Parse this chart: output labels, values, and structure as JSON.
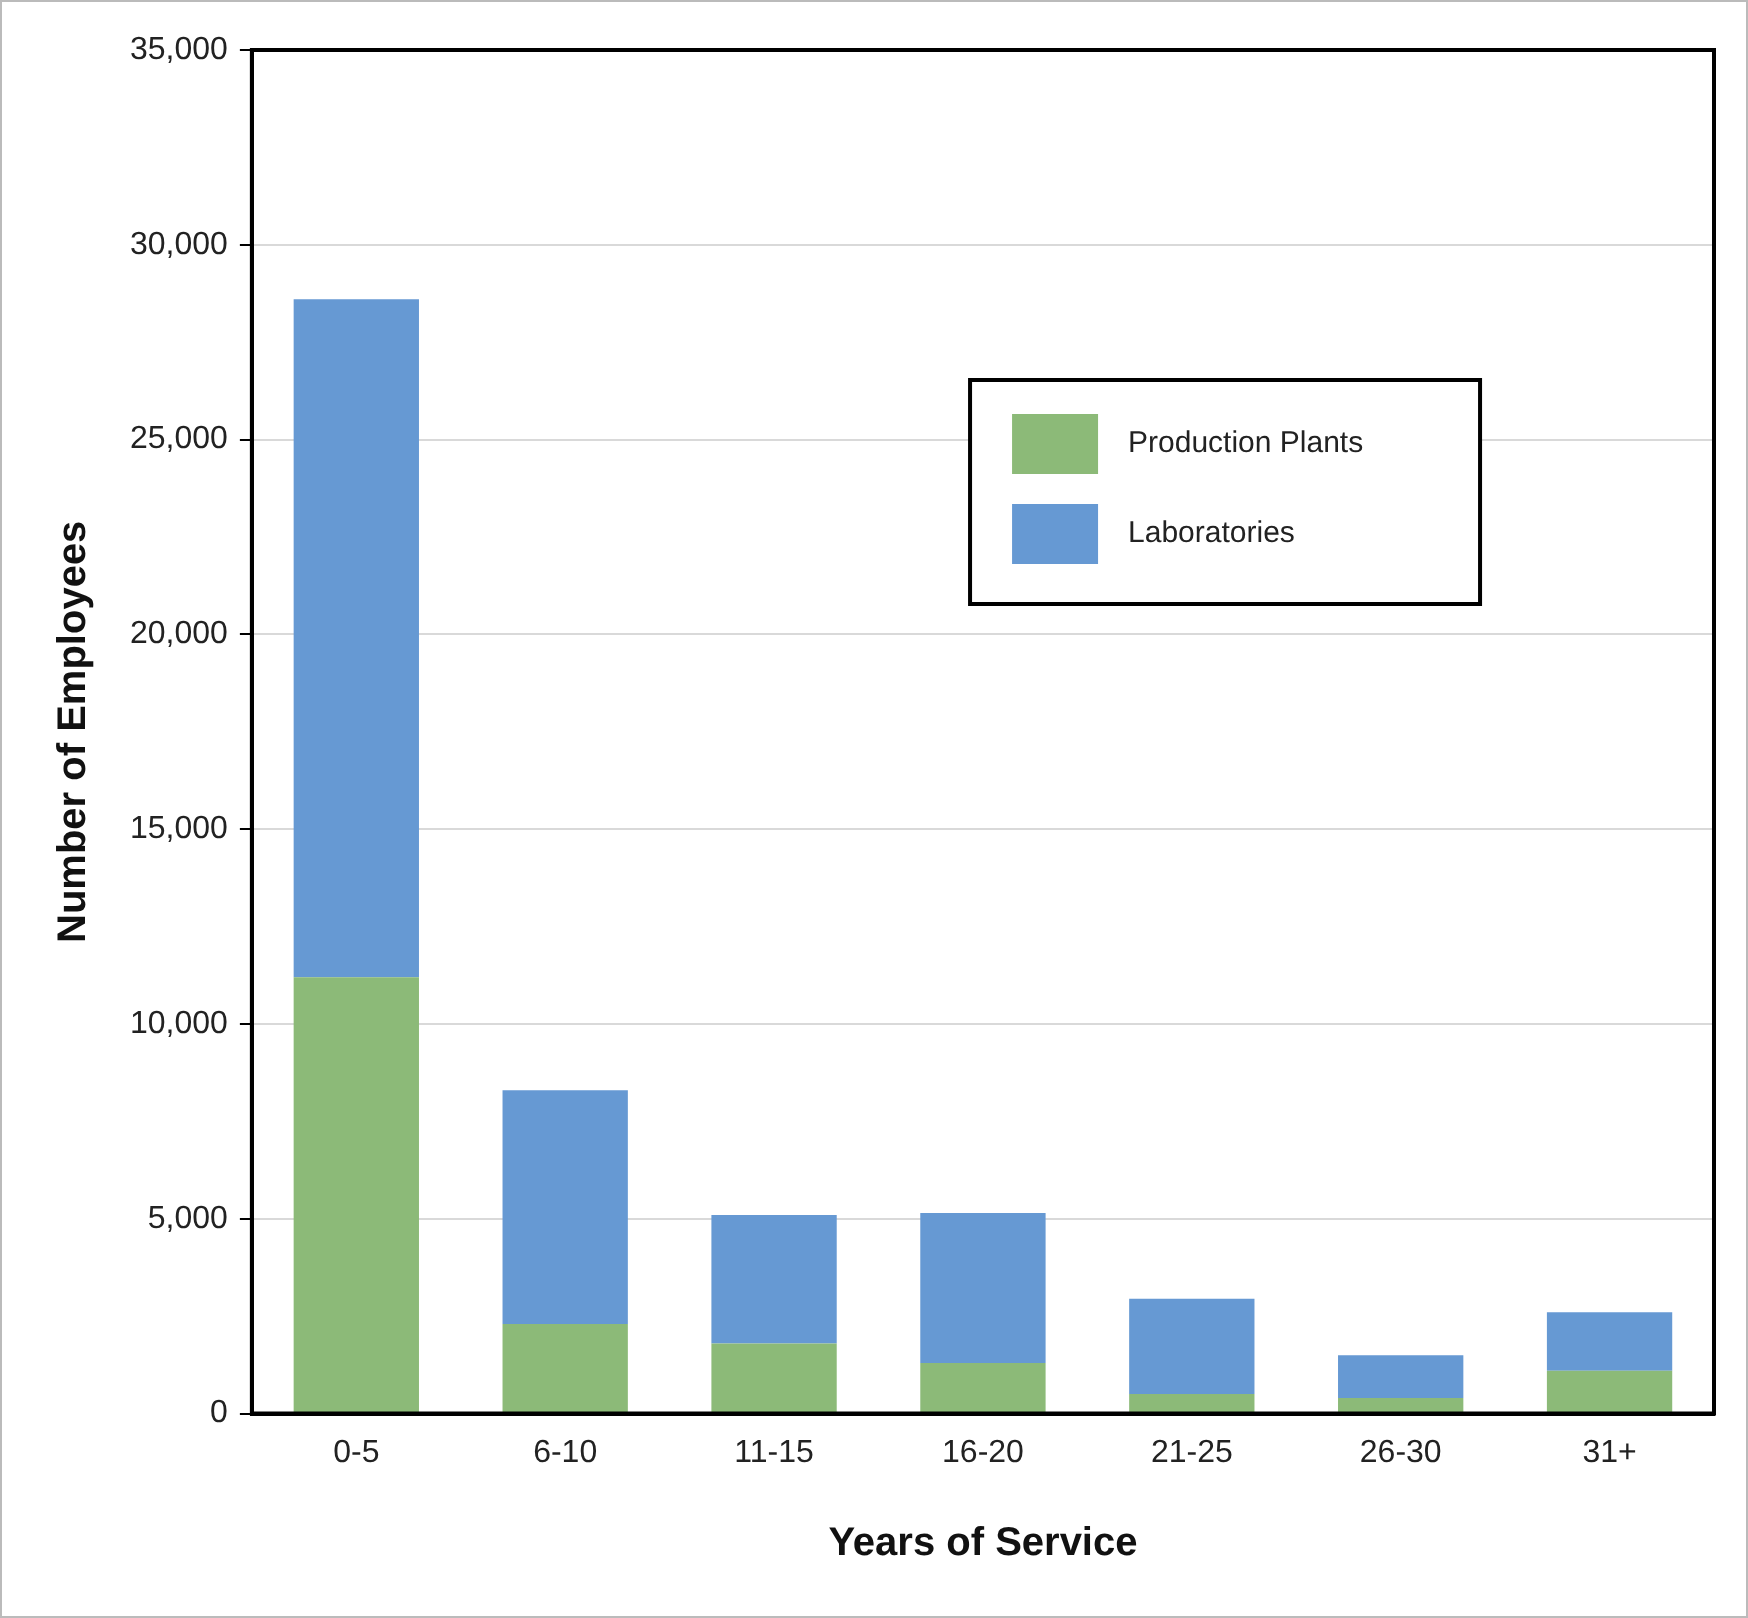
{
  "chart_data": {
    "type": "bar",
    "stacked": true,
    "xlabel": "Years of Service",
    "ylabel": "Number of Employees",
    "categories": [
      "0-5",
      "6-10",
      "11-15",
      "16-20",
      "21-25",
      "26-30",
      "31+"
    ],
    "series": [
      {
        "name": "Production Plants",
        "color": "#8cba78",
        "values": [
          11200,
          2300,
          1800,
          1300,
          500,
          400,
          1100
        ]
      },
      {
        "name": "Laboratories",
        "color": "#6699d3",
        "values": [
          17400,
          6000,
          3300,
          3850,
          2450,
          1100,
          1500
        ]
      }
    ],
    "ylim": [
      0,
      35000
    ],
    "yticks": [
      0,
      {
        "value": 5000,
        "label": "5,000"
      },
      {
        "value": 10000,
        "label": "10,000"
      },
      {
        "value": 15000,
        "label": "15,000"
      },
      {
        "value": 20000,
        "label": "20,000"
      },
      {
        "value": 25000,
        "label": "25,000"
      },
      {
        "value": 30000,
        "label": "30,000"
      },
      {
        "value": 35000,
        "label": "35,000"
      }
    ],
    "grid": "y",
    "legend": "top right"
  }
}
